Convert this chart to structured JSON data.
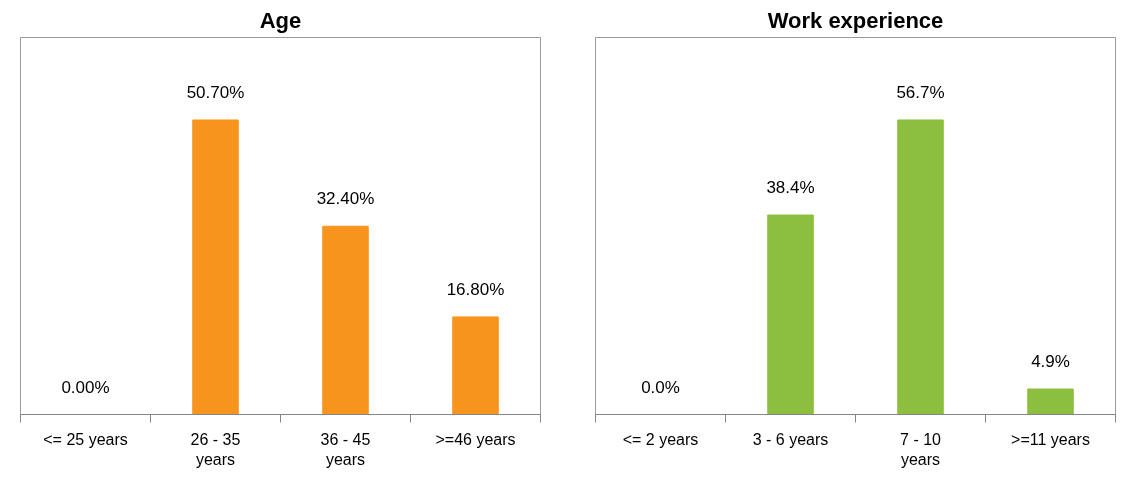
{
  "chart_data": [
    {
      "type": "bar",
      "title": "Age",
      "categories": [
        "<= 25 years",
        "26 - 35 years",
        "36 - 45 years",
        ">=46 years"
      ],
      "values": [
        0.0,
        50.7,
        32.4,
        16.8
      ],
      "value_labels": [
        "0.00%",
        "50.70%",
        "32.40%",
        "16.80%"
      ],
      "color": "#f7941d",
      "grid": false
    },
    {
      "type": "bar",
      "title": "Work experience",
      "categories": [
        "<= 2 years",
        "3 - 6 years",
        "7 - 10 years",
        ">=11 years"
      ],
      "values": [
        0.0,
        38.4,
        56.7,
        4.9
      ],
      "value_labels": [
        "0.0%",
        "38.4%",
        "56.7%",
        "4.9%"
      ],
      "color": "#8cbf3f",
      "grid": false
    }
  ]
}
